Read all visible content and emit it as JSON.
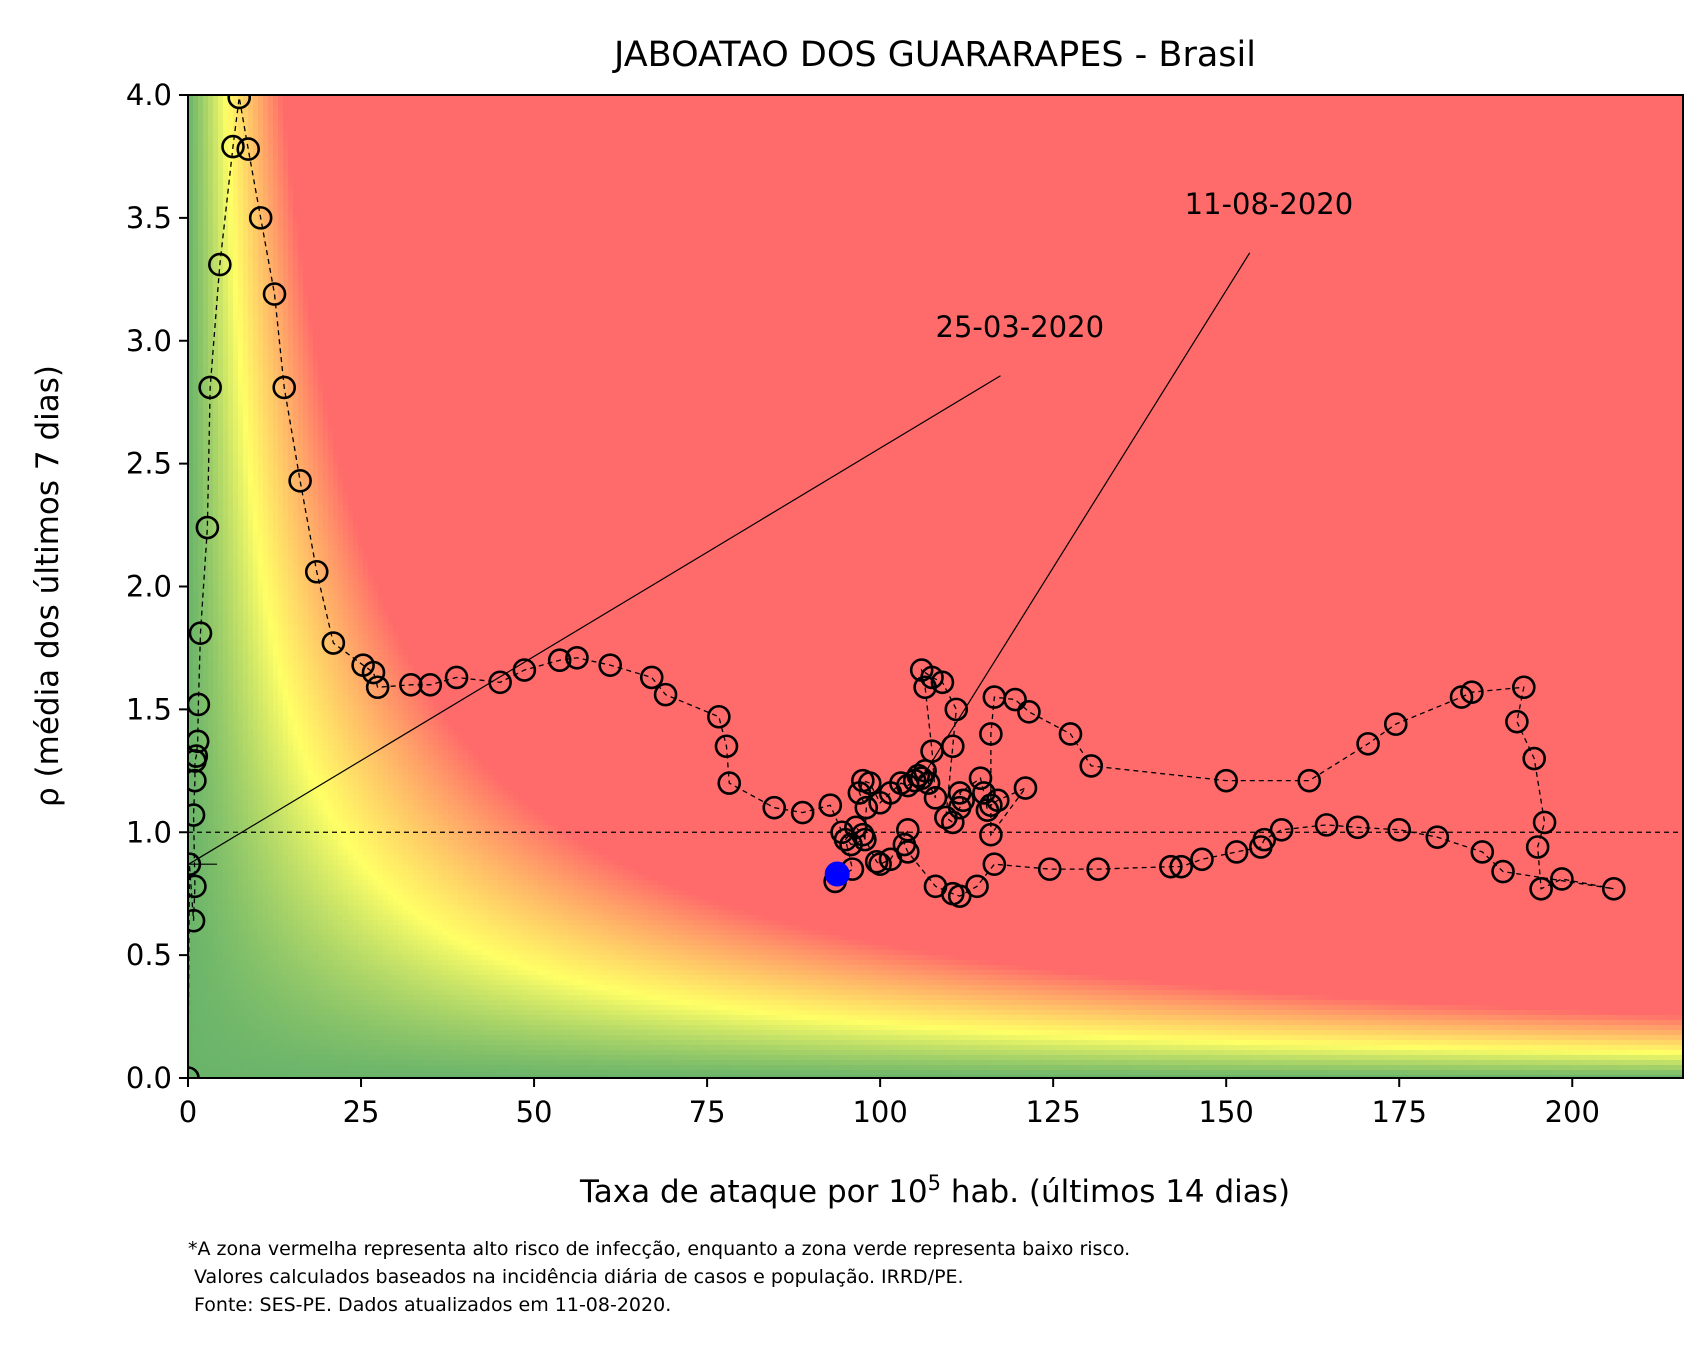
{
  "chart_data": {
    "type": "scatter",
    "title": "JABOATAO DOS GUARARAPES - Brasil",
    "xlabel": "Taxa de ataque por 10",
    "xlabel_sup": "5",
    "xlabel_rest": " hab. (últimos 14 dias)",
    "ylabel": "ρ (média dos últimos 7 dias)",
    "xlim": [
      0,
      216
    ],
    "ylim": [
      0,
      4.0
    ],
    "x_ticks": [
      0,
      25,
      50,
      75,
      100,
      125,
      150,
      175,
      200
    ],
    "y_ticks": [
      0.0,
      0.5,
      1.0,
      1.5,
      2.0,
      2.5,
      3.0,
      3.5,
      4.0
    ],
    "x_tick_labels": [
      "0",
      "25",
      "50",
      "75",
      "100",
      "125",
      "150",
      "175",
      "200"
    ],
    "y_tick_labels": [
      "0.0",
      "0.5",
      "1.0",
      "1.5",
      "2.0",
      "2.5",
      "3.0",
      "3.5",
      "4.0"
    ],
    "grid": false,
    "reference_line_y": 1.0,
    "background": "risk gradient: green (low) – yellow – red (high), boundary where x·ρ ≈ 75",
    "colors": {
      "red_zone": "#ff6a6a",
      "yellow_zone": "#ffff66",
      "green_zone": "#6ab46a",
      "last_point": "#0000ff",
      "markers": "#000000"
    },
    "annotations": [
      {
        "text": "25-03-2020",
        "point": [
          0.1,
          0.87
        ],
        "text_at": [
          108,
          3.0
        ]
      },
      {
        "text": "11-08-2020",
        "point": [
          106,
          1.22
        ],
        "text_at": [
          144,
          3.5
        ]
      }
    ],
    "series": [
      {
        "marker": "open-circle",
        "line": "dashed",
        "points": [
          [
            0,
            0.0
          ],
          [
            0.2,
            0.87
          ],
          [
            0.8,
            0.64
          ],
          [
            1.0,
            0.78
          ],
          [
            0.8,
            1.07
          ],
          [
            1.0,
            1.21
          ],
          [
            1.0,
            1.29
          ],
          [
            1.2,
            1.31
          ],
          [
            1.4,
            1.37
          ],
          [
            1.5,
            1.52
          ],
          [
            1.8,
            1.81
          ],
          [
            2.8,
            2.24
          ],
          [
            3.2,
            2.81
          ],
          [
            4.6,
            3.31
          ],
          [
            6.5,
            3.79
          ],
          [
            7.4,
            3.99
          ],
          [
            8.7,
            3.78
          ],
          [
            10.5,
            3.5
          ],
          [
            12.5,
            3.19
          ],
          [
            13.9,
            2.81
          ],
          [
            16.2,
            2.43
          ],
          [
            18.6,
            2.06
          ],
          [
            21.0,
            1.77
          ],
          [
            25.3,
            1.68
          ],
          [
            26.8,
            1.65
          ],
          [
            27.4,
            1.59
          ],
          [
            32.2,
            1.6
          ],
          [
            35.0,
            1.6
          ],
          [
            38.8,
            1.63
          ],
          [
            45.1,
            1.61
          ],
          [
            48.6,
            1.66
          ],
          [
            53.7,
            1.7
          ],
          [
            56.2,
            1.71
          ],
          [
            61.0,
            1.68
          ],
          [
            67.0,
            1.63
          ],
          [
            69.0,
            1.56
          ],
          [
            76.7,
            1.47
          ],
          [
            77.8,
            1.35
          ],
          [
            78.2,
            1.2
          ],
          [
            84.7,
            1.1
          ],
          [
            88.8,
            1.08
          ],
          [
            92.8,
            1.11
          ],
          [
            94.5,
            1.0
          ],
          [
            95.8,
            0.95
          ],
          [
            97.8,
            0.97
          ],
          [
            98.0,
            1.1
          ],
          [
            97.0,
            1.16
          ],
          [
            97.5,
            1.21
          ],
          [
            98.5,
            1.2
          ],
          [
            100.0,
            1.12
          ],
          [
            101.5,
            1.16
          ],
          [
            103.0,
            1.2
          ],
          [
            104.0,
            1.19
          ],
          [
            105.0,
            1.21
          ],
          [
            105.5,
            1.23
          ],
          [
            106.0,
            1.22
          ],
          [
            106.5,
            1.25
          ],
          [
            107.0,
            1.2
          ],
          [
            108.0,
            1.14
          ],
          [
            107.5,
            1.33
          ],
          [
            106.5,
            1.59
          ],
          [
            106.0,
            1.66
          ],
          [
            107.5,
            1.63
          ],
          [
            109.0,
            1.61
          ],
          [
            111.0,
            1.5
          ],
          [
            110.5,
            1.35
          ],
          [
            109.5,
            1.06
          ],
          [
            110.5,
            1.04
          ],
          [
            111.5,
            1.1
          ],
          [
            112.0,
            1.13
          ],
          [
            111.5,
            1.16
          ],
          [
            114.5,
            1.22
          ],
          [
            115.0,
            1.16
          ],
          [
            115.5,
            1.09
          ],
          [
            116.0,
            1.11
          ],
          [
            117.0,
            1.13
          ],
          [
            121.0,
            1.18
          ],
          [
            116.0,
            0.99
          ],
          [
            116.0,
            1.4
          ],
          [
            116.5,
            1.55
          ],
          [
            119.5,
            1.54
          ],
          [
            121.5,
            1.49
          ],
          [
            127.5,
            1.4
          ],
          [
            130.5,
            1.27
          ],
          [
            150.0,
            1.21
          ],
          [
            162.0,
            1.21
          ],
          [
            170.5,
            1.36
          ],
          [
            174.5,
            1.44
          ],
          [
            184.0,
            1.55
          ],
          [
            185.5,
            1.57
          ],
          [
            193.0,
            1.59
          ],
          [
            192.0,
            1.45
          ],
          [
            194.5,
            1.3
          ],
          [
            196.0,
            1.04
          ],
          [
            195.0,
            0.94
          ],
          [
            195.5,
            0.77
          ],
          [
            198.5,
            0.81
          ],
          [
            206.0,
            0.77
          ],
          [
            190.0,
            0.84
          ],
          [
            187.0,
            0.92
          ],
          [
            180.5,
            0.98
          ],
          [
            175.0,
            1.01
          ],
          [
            169.0,
            1.02
          ],
          [
            164.5,
            1.03
          ],
          [
            158.0,
            1.01
          ],
          [
            155.5,
            0.97
          ],
          [
            155.0,
            0.94
          ],
          [
            151.5,
            0.92
          ],
          [
            146.5,
            0.89
          ],
          [
            143.5,
            0.86
          ],
          [
            142.0,
            0.86
          ],
          [
            131.5,
            0.85
          ],
          [
            124.5,
            0.85
          ],
          [
            116.5,
            0.87
          ],
          [
            114.0,
            0.78
          ],
          [
            111.5,
            0.74
          ],
          [
            110.5,
            0.75
          ],
          [
            108.0,
            0.78
          ],
          [
            104.0,
            0.92
          ],
          [
            103.5,
            0.95
          ],
          [
            104.0,
            1.01
          ],
          [
            101.5,
            0.89
          ],
          [
            100.0,
            0.87
          ],
          [
            99.5,
            0.88
          ],
          [
            97.5,
            0.99
          ],
          [
            96.5,
            1.02
          ],
          [
            95.0,
            0.97
          ],
          [
            96.0,
            0.85
          ],
          [
            93.5,
            0.8
          ]
        ],
        "highlight_last": {
          "x": 93.8,
          "y": 0.83,
          "color": "#0000ff"
        }
      }
    ]
  },
  "footnote": [
    "*A zona vermelha representa alto risco de infecção, enquanto a zona verde representa baixo risco.",
    " Valores calculados baseados na incidência diária de casos e população. IRRD/PE.",
    " Fonte: SES-PE. Dados atualizados em 11-08-2020."
  ]
}
